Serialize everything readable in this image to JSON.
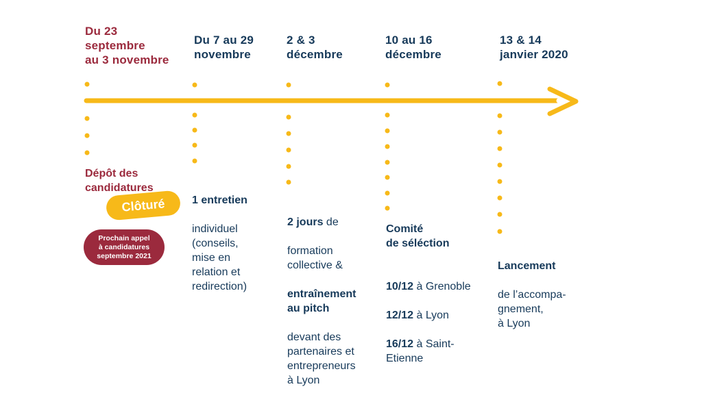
{
  "colors": {
    "accent": "#f7b919",
    "maroon": "#9b2a3d",
    "navy": "#173a5a"
  },
  "timeline": {
    "steps": [
      {
        "date": "Du 23\nseptembre\nau 3 novembre",
        "title": "Dépôt des\ncandidatures",
        "badge": "Clôturé",
        "note": "Prochain appel\nà candidatures\nseptembre 2021"
      },
      {
        "date": "Du 7 au 29\nnovembre",
        "lines": [
          {
            "bold": "1 entretien",
            "rest": ""
          },
          {
            "bold": "",
            "rest": "individuel\n(conseils,\nmise en\nrelation et\nredirection)"
          }
        ]
      },
      {
        "date": "2 & 3\ndécembre",
        "lines": [
          {
            "bold": "2 jours",
            "rest": " de"
          },
          {
            "bold": "",
            "rest": "formation\ncollective &"
          },
          {
            "bold": "entraînement\nau pitch",
            "rest": ""
          },
          {
            "bold": "",
            "rest": "devant des\npartenaires et\nentrepreneurs\nà Lyon"
          }
        ]
      },
      {
        "date": "10 au 16\ndécembre",
        "title": "Comité\nde séléction",
        "items": [
          {
            "bold": "10/12",
            "rest": " à Grenoble"
          },
          {
            "bold": "12/12",
            "rest": " à Lyon"
          },
          {
            "bold": "16/12",
            "rest": " à Saint-\nEtienne"
          }
        ]
      },
      {
        "date": "13 & 14\njanvier 2020",
        "title": "Lancement",
        "rest": "de l’accompa-\ngnement,\nà Lyon"
      }
    ]
  }
}
